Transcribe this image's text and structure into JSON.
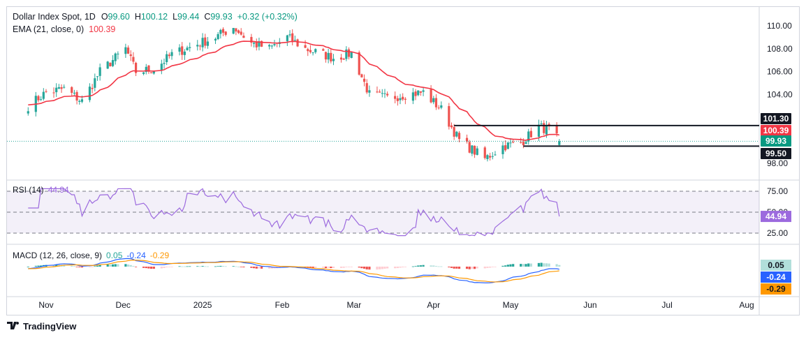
{
  "header": {
    "symbol": "Dollar Index Spot, 1D",
    "open_label": "O",
    "open": "99.60",
    "high_label": "H",
    "high": "100.12",
    "low_label": "L",
    "low": "99.44",
    "close_label": "C",
    "close": "99.93",
    "change": "+0.32 (+0.32%)",
    "ema_title": "EMA (21, close, 0)",
    "ema_value": "100.39"
  },
  "rsi": {
    "title": "RSI (14)",
    "value": "44.94"
  },
  "macd": {
    "title": "MACD (12, 26, close, 9)",
    "hist": "0.05",
    "macd": "-0.24",
    "signal": "-0.29"
  },
  "branding": {
    "name": "TradingView"
  },
  "colors": {
    "up": "#26a69a",
    "down": "#ef5350",
    "ema": "#f23645",
    "rsi": "#9c6ade",
    "macd": "#2962ff",
    "signal": "#ff9800",
    "level": "#131722"
  },
  "chart_data": {
    "type": "candlestick",
    "x_ticks": [
      "Nov",
      "Dec",
      "2025",
      "Feb",
      "Mar",
      "Apr",
      "May",
      "Jun",
      "Jul",
      "Aug"
    ],
    "price_axis": {
      "ticks": [
        "110.00",
        "108.00",
        "106.00",
        "104.00",
        "98.00"
      ],
      "tick_values": [
        110,
        108,
        106,
        104,
        98
      ],
      "ylim": [
        97.5,
        110.5
      ],
      "labels": [
        {
          "text": "101.30",
          "value": 101.3,
          "kind": "level"
        },
        {
          "text": "100.39",
          "value": 100.39,
          "kind": "ema"
        },
        {
          "text": "99.93",
          "value": 99.93,
          "kind": "last"
        },
        {
          "text": "99.50",
          "value": 99.5,
          "kind": "level"
        }
      ]
    },
    "horizontal_levels": [
      101.3,
      99.5
    ],
    "ohlc_path": [
      {
        "m": "Oct 25",
        "c": 103.0
      },
      {
        "m": "Nov 1",
        "c": 104.2
      },
      {
        "m": "Nov 8",
        "c": 104.5
      },
      {
        "m": "Nov 15",
        "c": 103.4
      },
      {
        "m": "Nov 22",
        "c": 106.0
      },
      {
        "m": "Dec 2",
        "c": 108.0
      },
      {
        "m": "Dec 6",
        "c": 106.0
      },
      {
        "m": "Dec 13",
        "c": 106.2
      },
      {
        "m": "Dec 20",
        "c": 107.5
      },
      {
        "m": "Dec 31",
        "c": 108.5
      },
      {
        "m": "Jan 6",
        "c": 109.0
      },
      {
        "m": "Jan 13",
        "c": 109.9
      },
      {
        "m": "Jan 20",
        "c": 108.5
      },
      {
        "m": "Jan 27",
        "c": 108.0
      },
      {
        "m": "Feb 3",
        "c": 109.0
      },
      {
        "m": "Feb 10",
        "c": 108.0
      },
      {
        "m": "Feb 21",
        "c": 107.2
      },
      {
        "m": "Feb 28",
        "c": 107.6
      },
      {
        "m": "Mar 7",
        "c": 104.0
      },
      {
        "m": "Mar 14",
        "c": 103.7
      },
      {
        "m": "Mar 21",
        "c": 104.0
      },
      {
        "m": "Mar 28",
        "c": 104.2
      },
      {
        "m": "Apr 4",
        "c": 102.7
      },
      {
        "m": "Apr 11",
        "c": 100.0
      },
      {
        "m": "Apr 21",
        "c": 98.4
      },
      {
        "m": "Apr 28",
        "c": 99.5
      },
      {
        "m": "May 5",
        "c": 99.8
      },
      {
        "m": "May 12",
        "c": 101.2
      },
      {
        "m": "May 16",
        "c": 100.9
      },
      {
        "m": "May 20",
        "c": 99.93
      }
    ],
    "ema": {
      "name": "EMA (21, close, 0)",
      "last": 100.39
    },
    "rsi": {
      "name": "RSI (14)",
      "last": 44.94,
      "ylim": [
        20,
        80
      ],
      "ticks": [
        "75.00",
        "50.00",
        "25.00"
      ],
      "tick_values": [
        75,
        50,
        25
      ],
      "band": [
        30,
        70
      ],
      "mid": 50
    },
    "macd": {
      "name": "MACD (12, 26, close, 9)",
      "hist_last": 0.05,
      "macd_last": -0.24,
      "signal_last": -0.29
    }
  }
}
